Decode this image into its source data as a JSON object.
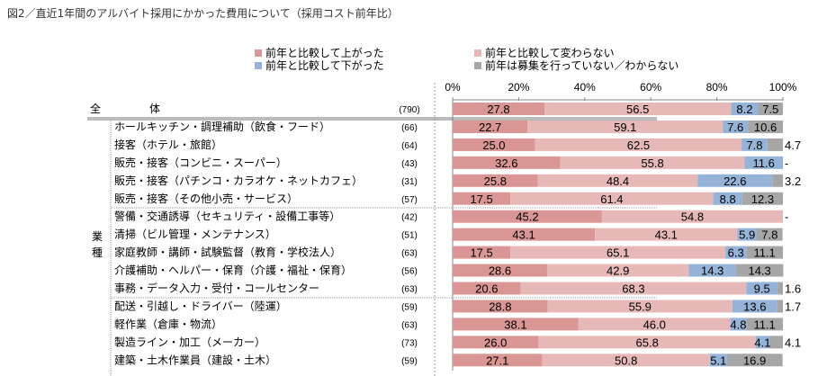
{
  "title": "図2／直近1年間のアルバイト採用にかかった費用について（採用コスト前年比）",
  "chart_data": {
    "type": "bar",
    "orientation": "horizontal",
    "stacked": true,
    "xlim": [
      0,
      100
    ],
    "ticks": [
      "0%",
      "20%",
      "40%",
      "60%",
      "80%",
      "100%"
    ],
    "legend_position": "top",
    "series": [
      {
        "name": "前年と比較して上がった",
        "color": "#d99694"
      },
      {
        "name": "前年と比較して変わらない",
        "color": "#e6b9b8"
      },
      {
        "name": "前年と比較して下がった",
        "color": "#95b3d7"
      },
      {
        "name": "前年は募集を行っていない／わからない",
        "color": "#a6a6a6"
      }
    ],
    "group_label": "業種",
    "total_label": [
      "全",
      "体"
    ],
    "rows": [
      {
        "label": "全体",
        "n": "(790)",
        "values": [
          27.8,
          56.5,
          8.2,
          7.5
        ]
      },
      {
        "label": "ホールキッチン・調理補助（飲食・フード）",
        "n": "(66)",
        "values": [
          22.7,
          59.1,
          7.6,
          10.6
        ]
      },
      {
        "label": "接客（ホテル・旅館）",
        "n": "(64)",
        "values": [
          25.0,
          62.5,
          7.8,
          4.7
        ]
      },
      {
        "label": "販売・接客（コンビニ・スーパー）",
        "n": "(43)",
        "values": [
          32.6,
          55.8,
          11.6,
          0
        ]
      },
      {
        "label": "販売・接客（パチンコ・カラオケ・ネットカフェ）",
        "n": "(31)",
        "values": [
          25.8,
          48.4,
          22.6,
          3.2
        ]
      },
      {
        "label": "販売・接客（その他小売・サービス）",
        "n": "(57)",
        "values": [
          17.5,
          61.4,
          8.8,
          12.3
        ]
      },
      {
        "label": "警備・交通誘導（セキュリティ・設備工事等）",
        "n": "(42)",
        "values": [
          45.2,
          54.8,
          0,
          0
        ]
      },
      {
        "label": "清掃（ビル管理・メンテナンス）",
        "n": "(51)",
        "values": [
          43.1,
          43.1,
          5.9,
          7.8
        ]
      },
      {
        "label": "家庭教師・講師・試験監督（教育・学校法人）",
        "n": "(63)",
        "values": [
          17.5,
          65.1,
          6.3,
          11.1
        ]
      },
      {
        "label": "介護補助・ヘルパー・保育（介護・福祉・保育）",
        "n": "(56)",
        "values": [
          28.6,
          42.9,
          14.3,
          14.3
        ]
      },
      {
        "label": "事務・データ入力・受付・コールセンター",
        "n": "(63)",
        "values": [
          20.6,
          68.3,
          9.5,
          1.6
        ]
      },
      {
        "label": "配送・引越し・ドライバー（陸運）",
        "n": "(59)",
        "values": [
          28.8,
          55.9,
          13.6,
          1.7
        ]
      },
      {
        "label": "軽作業（倉庫・物流）",
        "n": "(63)",
        "values": [
          38.1,
          46.0,
          4.8,
          11.1
        ]
      },
      {
        "label": "製造ライン・加工（メーカー）",
        "n": "(73)",
        "values": [
          26.0,
          65.8,
          4.1,
          4.1
        ]
      },
      {
        "label": "建築・土木作業員（建設・土木）",
        "n": "(59)",
        "values": [
          27.1,
          50.8,
          5.1,
          16.9
        ]
      }
    ]
  }
}
